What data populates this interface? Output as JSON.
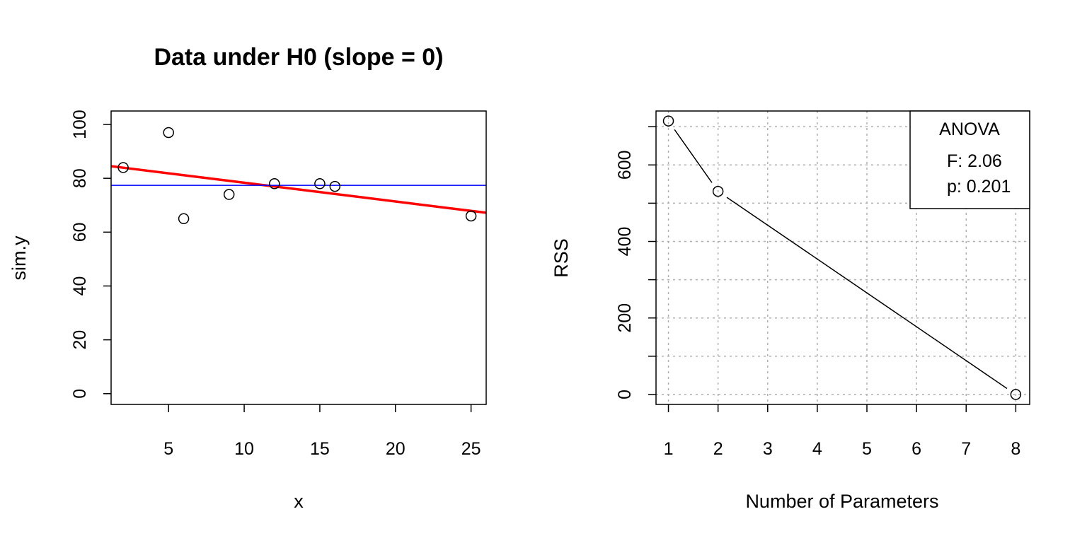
{
  "chart_data": [
    {
      "type": "scatter",
      "title": "Data under H0 (slope = 0)",
      "xlabel": "x",
      "ylabel": "sim.y",
      "xlim": [
        1.2,
        26
      ],
      "ylim": [
        -4,
        105
      ],
      "x_ticks": [
        "5",
        "10",
        "15",
        "20",
        "25"
      ],
      "y_ticks": [
        "0",
        "20",
        "40",
        "60",
        "80",
        "100"
      ],
      "grid": false,
      "series": [
        {
          "x": [
            2,
            5,
            6,
            9,
            12,
            15,
            16,
            25
          ],
          "y": [
            84,
            97,
            65,
            74,
            78,
            78,
            77,
            66
          ],
          "marker": "open-circle"
        }
      ],
      "lines": [
        {
          "kind": "fitted-regression",
          "x": [
            1.2,
            26
          ],
          "y": [
            84.5,
            67.2
          ],
          "color": "#ff0000"
        },
        {
          "kind": "horizontal-mean",
          "y": 77.4,
          "color": "#0000ff"
        }
      ]
    },
    {
      "type": "line",
      "title": "",
      "xlabel": "Number of Parameters",
      "ylabel": "RSS",
      "xlim": [
        0.75,
        8.28
      ],
      "ylim": [
        -26,
        741
      ],
      "x_ticks": [
        "1",
        "2",
        "3",
        "4",
        "5",
        "6",
        "7",
        "8"
      ],
      "y_ticks": [
        "0",
        "200",
        "400",
        "600"
      ],
      "grid": true,
      "series": [
        {
          "x": [
            1,
            2,
            8
          ],
          "y": [
            715,
            531,
            0
          ],
          "marker": "open-circle",
          "color": "#000000"
        }
      ],
      "legend": {
        "position": "top-right",
        "title": "ANOVA",
        "lines": [
          "F: 2.06",
          "p: 0.201"
        ]
      }
    }
  ]
}
